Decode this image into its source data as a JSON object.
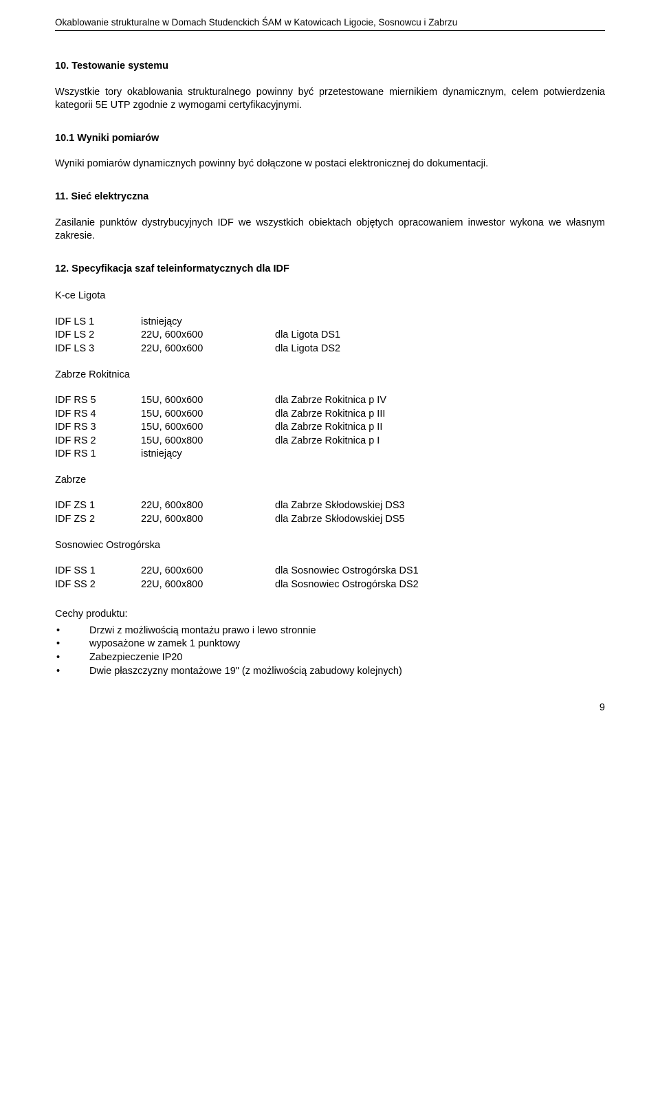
{
  "header": "Okablowanie strukturalne w Domach Studenckich ŚAM w Katowicach Ligocie, Sosnowcu i Zabrzu",
  "s10": {
    "title": "10. Testowanie systemu",
    "para": "Wszystkie tory okablowania strukturalnego powinny być przetestowane miernikiem dynamicznym, celem potwierdzenia kategorii 5E UTP zgodnie z wymogami certyfikacyjnymi."
  },
  "s10_1": {
    "title": "10.1 Wyniki pomiarów",
    "para": "Wyniki pomiarów dynamicznych powinny być dołączone w postaci elektronicznej do dokumentacji."
  },
  "s11": {
    "title": "11. Sieć elektryczna",
    "para": "Zasilanie punktów dystrybucyjnych IDF we wszystkich obiektach objętych opracowaniem inwestor wykona we własnym zakresie."
  },
  "s12": {
    "title": "12. Specyfikacja szaf teleinformatycznych dla IDF"
  },
  "loc1": {
    "name": "K-ce Ligota",
    "rows": [
      {
        "id": "IDF LS 1",
        "spec": "istniejący",
        "desc": ""
      },
      {
        "id": "IDF LS 2",
        "spec": "22U, 600x600",
        "desc": "dla Ligota DS1"
      },
      {
        "id": "IDF LS 3",
        "spec": "22U, 600x600",
        "desc": "dla Ligota DS2"
      }
    ]
  },
  "loc2": {
    "name": "Zabrze Rokitnica",
    "rows": [
      {
        "id": "IDF RS 5",
        "spec": "15U, 600x600",
        "desc": "dla Zabrze Rokitnica p IV"
      },
      {
        "id": "IDF RS 4",
        "spec": "15U, 600x600",
        "desc": "dla Zabrze Rokitnica p III"
      },
      {
        "id": "IDF RS 3",
        "spec": "15U, 600x600",
        "desc": "dla Zabrze Rokitnica p II"
      },
      {
        "id": "IDF RS 2",
        "spec": "15U, 600x800",
        "desc": "dla Zabrze Rokitnica p I"
      },
      {
        "id": "IDF RS 1",
        "spec": "istniejący",
        "desc": ""
      }
    ]
  },
  "loc3": {
    "name": "Zabrze",
    "rows": [
      {
        "id": "IDF ZS 1",
        "spec": "22U, 600x800",
        "desc": "dla Zabrze Skłodowskiej DS3"
      },
      {
        "id": "IDF ZS 2",
        "spec": "22U, 600x800",
        "desc": "dla Zabrze Skłodowskiej DS5"
      }
    ]
  },
  "loc4": {
    "name": "Sosnowiec Ostrogórska",
    "rows": [
      {
        "id": "IDF SS 1",
        "spec": "22U, 600x600",
        "desc": "dla Sosnowiec Ostrogórska DS1"
      },
      {
        "id": "IDF SS 2",
        "spec": "22U, 600x800",
        "desc": "dla Sosnowiec Ostrogórska DS2"
      }
    ]
  },
  "features": {
    "title": "Cechy produktu:",
    "items": [
      "Drzwi z możliwością montażu prawo i lewo stronnie",
      "wyposażone w zamek 1 punktowy",
      "Zabezpieczenie IP20",
      "Dwie płaszczyzny montażowe 19\" (z możliwością zabudowy kolejnych)"
    ]
  },
  "pageNumber": "9"
}
